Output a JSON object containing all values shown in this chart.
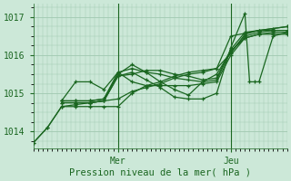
{
  "title": "",
  "xlabel": "Pression niveau de la mer( hPa )",
  "ylabel": "",
  "bg_color": "#cce8d8",
  "grid_color": "#a0c8b0",
  "line_color": "#1a6620",
  "yticks": [
    1014,
    1015,
    1016,
    1017
  ],
  "ylim": [
    1013.55,
    1017.35
  ],
  "xlim": [
    0,
    54
  ],
  "mer_x": 18,
  "jeu_x": 42,
  "series": [
    [
      0,
      1013.7,
      3,
      1014.1,
      6,
      1014.65,
      9,
      1014.7,
      12,
      1014.75,
      15,
      1014.8,
      18,
      1014.85,
      21,
      1015.05,
      24,
      1015.15,
      27,
      1015.25,
      30,
      1015.4,
      33,
      1015.5,
      36,
      1015.55,
      39,
      1015.65,
      42,
      1016.05,
      45,
      1016.55,
      48,
      1016.65,
      51,
      1016.7,
      54,
      1016.75
    ],
    [
      6,
      1014.75,
      9,
      1014.75,
      12,
      1014.75,
      15,
      1014.8,
      18,
      1015.45,
      21,
      1015.55,
      24,
      1015.35,
      27,
      1015.15,
      30,
      1014.9,
      33,
      1014.85,
      36,
      1014.85,
      39,
      1015.0,
      42,
      1016.2,
      45,
      1017.1,
      46,
      1015.3,
      47,
      1015.3,
      48,
      1015.3,
      51,
      1016.5,
      54,
      1016.6
    ],
    [
      6,
      1014.75,
      9,
      1014.75,
      12,
      1014.75,
      15,
      1014.8,
      18,
      1015.45,
      21,
      1015.5,
      24,
      1015.6,
      27,
      1015.6,
      30,
      1015.5,
      33,
      1015.45,
      36,
      1015.35,
      39,
      1015.4,
      42,
      1016.15,
      45,
      1016.6,
      48,
      1016.65,
      51,
      1016.65,
      54,
      1016.65
    ],
    [
      6,
      1014.8,
      9,
      1014.8,
      12,
      1014.8,
      15,
      1014.85,
      18,
      1015.5,
      21,
      1015.75,
      24,
      1015.55,
      27,
      1015.3,
      30,
      1015.1,
      33,
      1014.95,
      36,
      1015.3,
      39,
      1015.5,
      42,
      1016.1,
      45,
      1016.5,
      48,
      1016.6,
      51,
      1016.65,
      54,
      1016.65
    ],
    [
      6,
      1014.8,
      9,
      1014.8,
      12,
      1014.8,
      15,
      1014.85,
      18,
      1015.55,
      21,
      1015.65,
      24,
      1015.55,
      27,
      1015.5,
      30,
      1015.4,
      33,
      1015.35,
      36,
      1015.3,
      39,
      1015.35,
      42,
      1016.1,
      45,
      1016.45,
      48,
      1016.55,
      51,
      1016.6,
      54,
      1016.6
    ],
    [
      6,
      1014.8,
      9,
      1015.3,
      12,
      1015.3,
      15,
      1015.1,
      18,
      1015.55,
      21,
      1015.3,
      24,
      1015.2,
      27,
      1015.2,
      30,
      1015.2,
      33,
      1015.2,
      36,
      1015.25,
      39,
      1015.3,
      42,
      1016.0,
      45,
      1016.45,
      48,
      1016.55,
      51,
      1016.55,
      54,
      1016.55
    ],
    [
      0,
      1013.7,
      3,
      1014.1,
      6,
      1014.65,
      9,
      1014.65,
      12,
      1014.65,
      15,
      1014.65,
      18,
      1014.65,
      21,
      1015.0,
      24,
      1015.2,
      27,
      1015.3,
      30,
      1015.45,
      33,
      1015.55,
      36,
      1015.6,
      39,
      1015.65,
      42,
      1016.5,
      48,
      1016.65,
      54,
      1016.75
    ]
  ]
}
